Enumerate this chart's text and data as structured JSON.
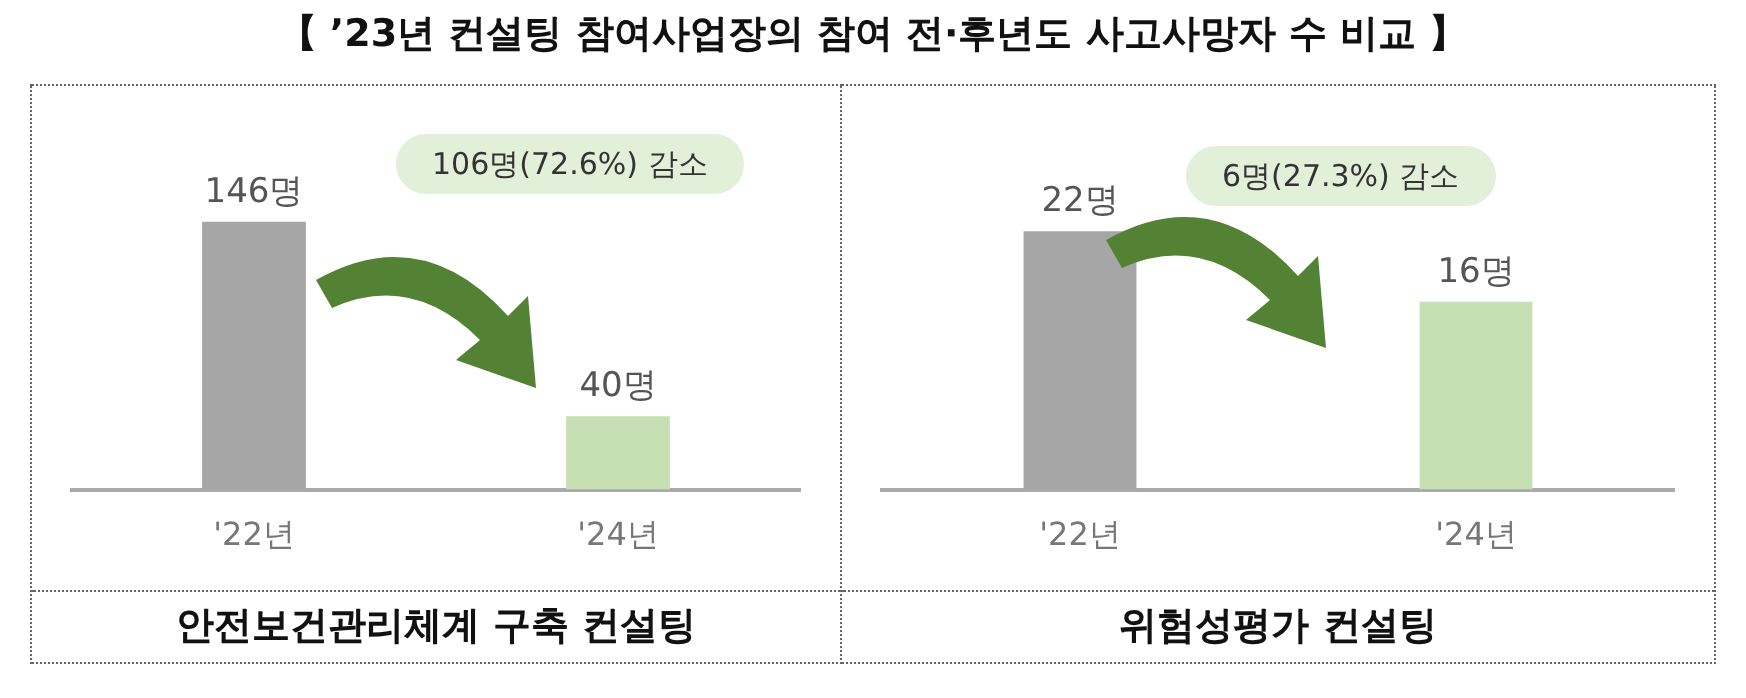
{
  "chart_data": [
    {
      "type": "bar",
      "title": "【 ’23년 컨설팅 참여사업장의 참여 전·후년도 사고사망자 수 비교 】",
      "xlabel": "안전보건관리체계 구축 컨설팅",
      "categories": [
        "'22년",
        "'24년"
      ],
      "values": [
        146,
        40
      ],
      "colors": [
        "#a6a6a6",
        "#c6e0b4"
      ],
      "value_labels": [
        "146명",
        "40명"
      ],
      "annotations": [
        "106명(72.6%) 감소"
      ],
      "legend": false,
      "grid": false
    },
    {
      "type": "bar",
      "xlabel": "위험성평가 컨설팅",
      "categories": [
        "'22년",
        "'24년"
      ],
      "values": [
        22,
        16
      ],
      "colors": [
        "#a6a6a6",
        "#c6e0b4"
      ],
      "value_labels": [
        "22명",
        "16명"
      ],
      "annotations": [
        "6명(27.3%) 감소"
      ],
      "legend": false,
      "grid": false
    }
  ]
}
